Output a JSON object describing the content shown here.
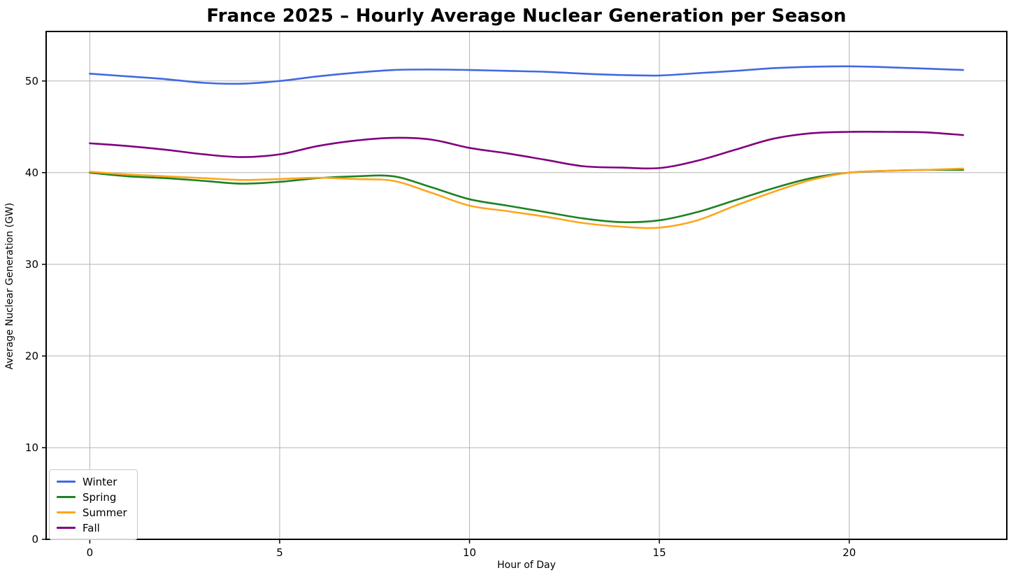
{
  "chart_data": {
    "type": "line",
    "title": "France 2025 – Hourly Average Nuclear Generation per Season",
    "xlabel": "Hour of Day",
    "ylabel": "Average Nuclear Generation (GW)",
    "x": [
      0,
      1,
      2,
      3,
      4,
      5,
      6,
      7,
      8,
      9,
      10,
      11,
      12,
      13,
      14,
      15,
      16,
      17,
      18,
      19,
      20,
      21,
      22,
      23
    ],
    "xtick_labels": [
      "0",
      "5",
      "10",
      "15",
      "20"
    ],
    "ytick_labels": [
      "0",
      "10",
      "20",
      "30",
      "40",
      "50"
    ],
    "xticks": [
      0,
      5,
      10,
      15,
      20
    ],
    "yticks": [
      0,
      10,
      20,
      30,
      40,
      50
    ],
    "xlim": [
      -1.15,
      24.15
    ],
    "ylim": [
      0,
      55.4
    ],
    "grid": true,
    "grid_color": "#b3b3b3",
    "legend_position": "lower left",
    "series": [
      {
        "name": "Winter",
        "color": "#4169E1",
        "values": [
          50.8,
          50.5,
          50.2,
          49.8,
          49.7,
          50.0,
          50.5,
          50.9,
          51.2,
          51.25,
          51.2,
          51.1,
          51.0,
          50.8,
          50.65,
          50.6,
          50.85,
          51.1,
          51.4,
          51.55,
          51.6,
          51.5,
          51.35,
          51.2
        ]
      },
      {
        "name": "Spring",
        "color": "#1e8222",
        "values": [
          40.0,
          39.6,
          39.4,
          39.1,
          38.8,
          39.0,
          39.4,
          39.6,
          39.6,
          38.4,
          37.1,
          36.4,
          35.7,
          35.0,
          34.6,
          34.8,
          35.7,
          37.0,
          38.3,
          39.4,
          40.0,
          40.2,
          40.3,
          40.3
        ]
      },
      {
        "name": "Summer",
        "color": "#FFA51E",
        "values": [
          40.1,
          39.8,
          39.6,
          39.4,
          39.2,
          39.3,
          39.45,
          39.3,
          39.1,
          37.8,
          36.4,
          35.8,
          35.2,
          34.5,
          34.1,
          34.0,
          34.8,
          36.4,
          37.9,
          39.2,
          40.0,
          40.2,
          40.3,
          40.45
        ]
      },
      {
        "name": "Fall",
        "color": "#800080",
        "values": [
          43.2,
          42.9,
          42.5,
          42.0,
          41.7,
          42.0,
          42.9,
          43.5,
          43.8,
          43.6,
          42.7,
          42.1,
          41.4,
          40.7,
          40.55,
          40.5,
          41.3,
          42.5,
          43.7,
          44.3,
          44.45,
          44.45,
          44.4,
          44.1
        ]
      }
    ]
  }
}
